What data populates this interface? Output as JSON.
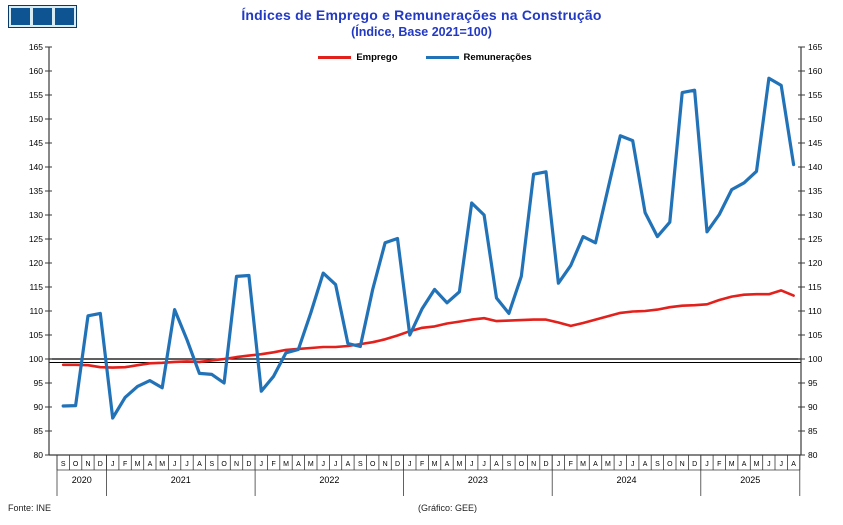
{
  "logo": {
    "cells": 3,
    "cell_color": "#0E5493",
    "gap_color": "#D8ECF5",
    "border_color": "#0A3A66"
  },
  "header": {
    "title": "Índices de Emprego e Remunerações na Construção",
    "subtitle": "(Índice, Base 2021=100)",
    "title_color": "#2239C4"
  },
  "legend": [
    {
      "label": "Emprego",
      "color": "#E3211C"
    },
    {
      "label": "Remunerações",
      "color": "#2272B8"
    }
  ],
  "chart_data": {
    "type": "line",
    "title": "Índices de Emprego e Remunerações na Construção",
    "subtitle": "(Índice, Base 2021=100)",
    "ylim": [
      80,
      165
    ],
    "y_tick_step": 5,
    "baseline": 100,
    "grid": false,
    "legend_position": "top-center",
    "x_months": [
      "S",
      "O",
      "N",
      "D",
      "J",
      "F",
      "M",
      "A",
      "M",
      "J",
      "J",
      "A",
      "S",
      "O",
      "N",
      "D",
      "J",
      "F",
      "M",
      "A",
      "M",
      "J",
      "J",
      "A",
      "S",
      "O",
      "N",
      "D",
      "J",
      "F",
      "M",
      "A",
      "M",
      "J",
      "J",
      "A",
      "S",
      "O",
      "N",
      "D",
      "J",
      "F",
      "M",
      "A",
      "M",
      "J",
      "J",
      "A",
      "S",
      "O",
      "N",
      "D",
      "J",
      "F",
      "M",
      "A",
      "M",
      "J",
      "J",
      "A"
    ],
    "x_years": [
      {
        "label": "2020",
        "months": 4
      },
      {
        "label": "2021",
        "months": 12
      },
      {
        "label": "2022",
        "months": 12
      },
      {
        "label": "2023",
        "months": 12
      },
      {
        "label": "2024",
        "months": 12
      },
      {
        "label": "2025",
        "months": 8
      }
    ],
    "series": [
      {
        "name": "Emprego",
        "color": "#E3211C",
        "values": [
          98.8,
          98.8,
          98.7,
          98.3,
          98.2,
          98.3,
          98.7,
          99.1,
          99.2,
          99.4,
          99.5,
          99.4,
          99.7,
          100.0,
          100.4,
          100.7,
          101.0,
          101.4,
          101.9,
          102.1,
          102.3,
          102.5,
          102.5,
          102.7,
          103.1,
          103.5,
          104.1,
          104.9,
          105.8,
          106.5,
          106.8,
          107.4,
          107.8,
          108.2,
          108.5,
          107.9,
          108.0,
          108.1,
          108.2,
          108.2,
          107.6,
          106.9,
          107.5,
          108.2,
          108.9,
          109.6,
          109.9,
          110.0,
          110.3,
          110.8,
          111.1,
          111.2,
          111.4,
          112.3,
          113.0,
          113.4,
          113.5,
          113.5,
          114.3,
          113.2
        ]
      },
      {
        "name": "Remunerações",
        "color": "#2272B8",
        "values": [
          90.2,
          90.3,
          109.0,
          109.5,
          87.7,
          92.0,
          94.3,
          95.5,
          94.0,
          110.3,
          104.0,
          97.0,
          96.8,
          95.0,
          117.2,
          117.4,
          93.3,
          96.4,
          101.3,
          102.0,
          109.6,
          117.9,
          115.5,
          103.2,
          102.6,
          114.5,
          124.2,
          125.1,
          105.0,
          110.5,
          114.5,
          111.7,
          114.0,
          132.5,
          130.0,
          112.7,
          109.5,
          117.2,
          138.5,
          139.0,
          115.8,
          119.5,
          125.5,
          124.2,
          135.4,
          146.5,
          145.5,
          130.5,
          125.5,
          128.5,
          155.5,
          156.0,
          126.5,
          130.1,
          135.3,
          136.7,
          139.1,
          158.5,
          157.0,
          140.5
        ]
      }
    ]
  },
  "footer": {
    "source": "Fonte: INE",
    "credit": "(Gráfico: GEE)"
  }
}
